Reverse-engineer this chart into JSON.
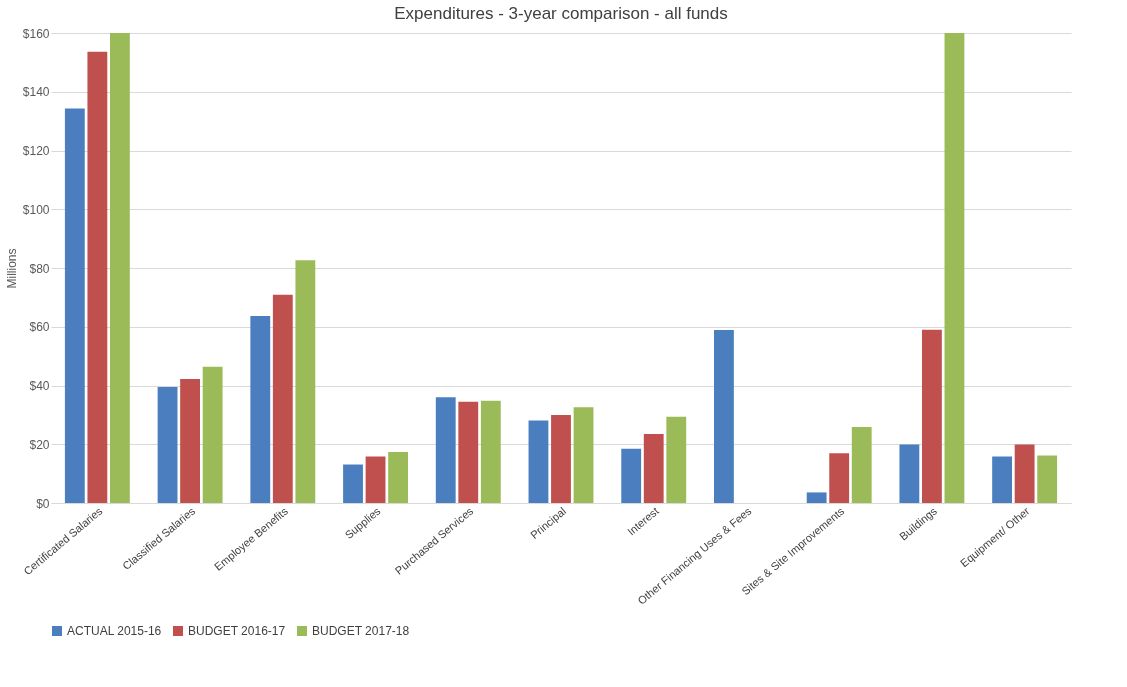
{
  "chart_data": {
    "type": "bar",
    "title": "Expenditures - 3-year comparison - all funds",
    "ylabel": "Millions",
    "categories": [
      "Certificated Salaries",
      "Classified Salaries",
      "Employee Benefits",
      "Supplies",
      "Purchased Services",
      "Principal",
      "Interest",
      "Other Financing Uses & Fees",
      "Sites & Site Improvements",
      "Buildings",
      "Equipment/ Other"
    ],
    "series": [
      {
        "name": "ACTUAL 2015-16",
        "color": "#4a7ebf",
        "values": [
          134.3,
          39.5,
          63.7,
          13.1,
          36.0,
          28.1,
          18.5,
          58.9,
          3.6,
          19.9,
          15.8
        ]
      },
      {
        "name": "BUDGET 2016-17",
        "color": "#c0504d",
        "values": [
          153.6,
          42.2,
          70.9,
          15.8,
          34.5,
          30.0,
          23.5,
          0,
          16.9,
          59.0,
          19.9
        ]
      },
      {
        "name": "BUDGET 2017-18",
        "color": "#9bbb59",
        "values": [
          160,
          46.4,
          82.6,
          17.4,
          34.8,
          32.6,
          29.4,
          0,
          25.9,
          160,
          16.2
        ]
      }
    ],
    "ylim": [
      0,
      160
    ],
    "yticks": [
      {
        "value": 0,
        "label": "$0"
      },
      {
        "value": 20,
        "label": "$20"
      },
      {
        "value": 40,
        "label": "$40"
      },
      {
        "value": 60,
        "label": "$60"
      },
      {
        "value": 80,
        "label": "$80"
      },
      {
        "value": 100,
        "label": "$100"
      },
      {
        "value": 120,
        "label": "$120"
      },
      {
        "value": 140,
        "label": "$140"
      },
      {
        "value": 160,
        "label": "$160"
      }
    ],
    "grid": "y",
    "legend": "bottom"
  }
}
